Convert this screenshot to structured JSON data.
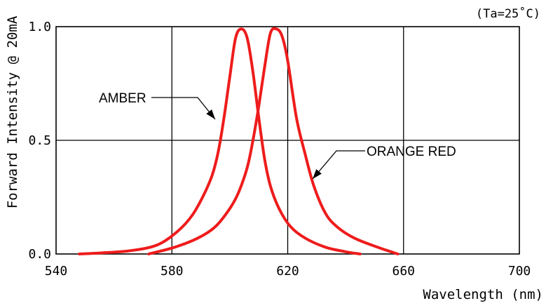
{
  "chart_data": {
    "type": "line",
    "condition_note": "(Ta=25˚C)",
    "xlabel": "Wavelength (nm)",
    "ylabel": "Forward Intensity @ 20mA",
    "xlim": [
      540,
      700
    ],
    "ylim": [
      0.0,
      1.0
    ],
    "x_ticks": [
      540,
      580,
      620,
      660,
      700
    ],
    "x_tick_labels": [
      "540",
      "580",
      "620",
      "660",
      "700"
    ],
    "y_ticks": [
      0.0,
      0.5,
      1.0
    ],
    "y_tick_labels": [
      "0.0",
      "0.5",
      "1.0"
    ],
    "grid": true,
    "series": [
      {
        "name": "AMBER",
        "color": "#ee1c1c",
        "x": [
          548,
          556,
          566,
          575,
          582,
          587,
          591,
          594,
          596,
          598,
          600,
          602,
          604,
          606,
          608,
          610,
          612,
          614,
          617,
          621,
          626,
          633,
          640,
          645
        ],
        "y": [
          0.0,
          0.005,
          0.015,
          0.04,
          0.1,
          0.17,
          0.26,
          0.35,
          0.45,
          0.6,
          0.78,
          0.95,
          0.99,
          0.95,
          0.8,
          0.6,
          0.42,
          0.3,
          0.2,
          0.12,
          0.07,
          0.03,
          0.01,
          0.0
        ]
      },
      {
        "name": "ORANGE RED",
        "color": "#ee1c1c",
        "x": [
          572,
          581,
          589,
          595,
          600,
          603,
          606,
          608,
          610,
          612,
          614,
          616,
          618,
          620,
          623,
          626,
          629,
          633,
          637,
          643,
          651,
          658
        ],
        "y": [
          0.0,
          0.03,
          0.07,
          0.12,
          0.2,
          0.27,
          0.38,
          0.5,
          0.65,
          0.82,
          0.97,
          0.99,
          0.96,
          0.85,
          0.6,
          0.44,
          0.3,
          0.18,
          0.12,
          0.07,
          0.03,
          0.0
        ]
      }
    ],
    "annotations": [
      {
        "text": "AMBER",
        "series": "AMBER"
      },
      {
        "text": "ORANGE RED",
        "series": "ORANGE RED"
      }
    ]
  }
}
